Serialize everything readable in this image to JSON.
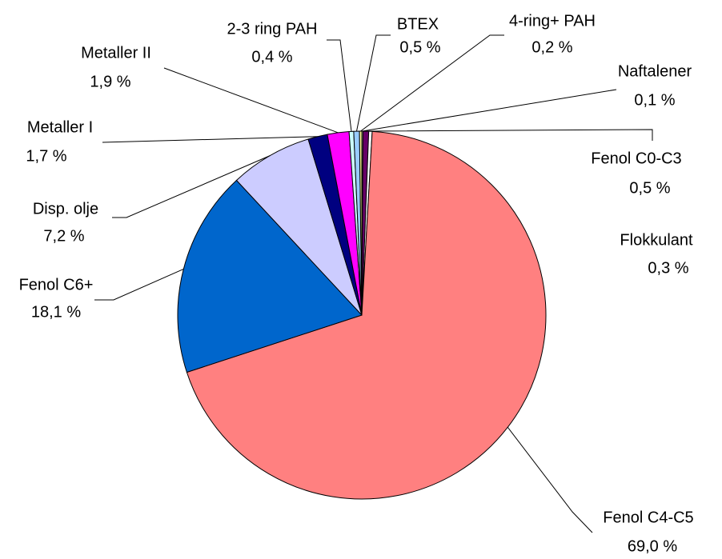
{
  "chart_data": {
    "type": "pie",
    "categories": [
      "Naftalener",
      "Fenol C0-C3",
      "Flokkulant",
      "Fenol C4-C5",
      "Fenol C6+",
      "Disp. olje",
      "Metaller I",
      "Metaller II",
      "2-3 ring PAH",
      "BTEX",
      "4-ring+ PAH"
    ],
    "values": [
      0.1,
      0.5,
      0.3,
      69.0,
      18.1,
      7.2,
      1.7,
      1.9,
      0.4,
      0.5,
      0.2
    ],
    "value_labels": [
      "0,1 %",
      "0,5 %",
      "0,3 %",
      "69,0 %",
      "18,1 %",
      "7,2 %",
      "1,7 %",
      "1,9 %",
      "0,4 %",
      "0,5 %",
      "0,2 %"
    ],
    "colors": [
      "#ffffcc",
      "#660066",
      "#ffffff",
      "#ff8080",
      "#0066cc",
      "#ccccff",
      "#000080",
      "#ff00ff",
      "#ccffff",
      "#99ccff",
      "#ffff99"
    ]
  }
}
